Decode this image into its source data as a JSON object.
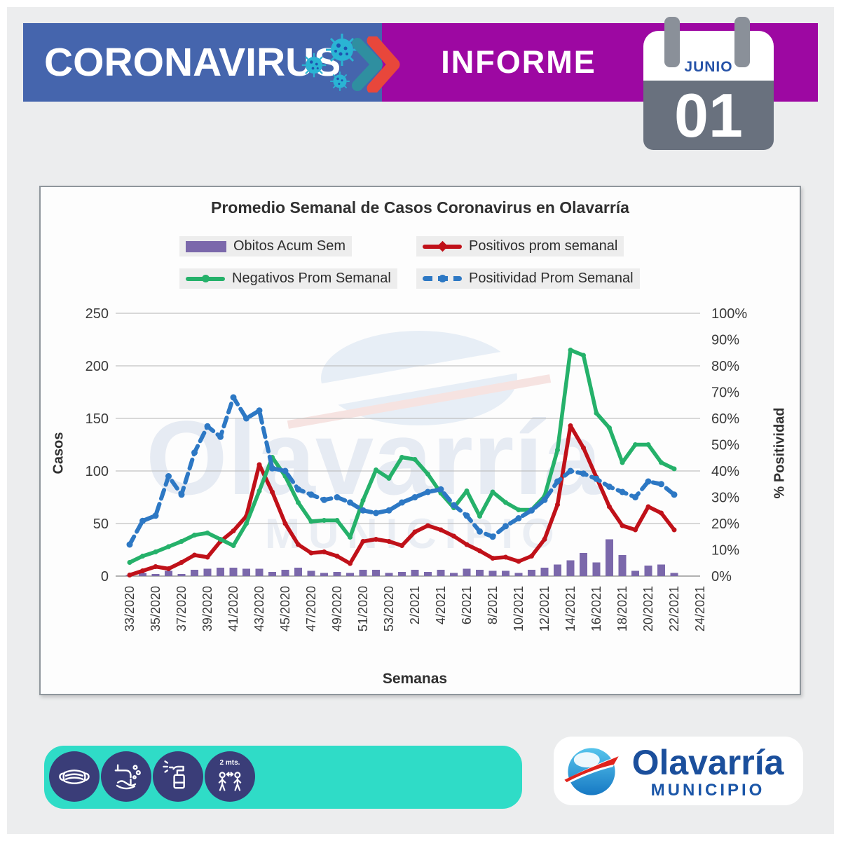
{
  "header": {
    "title": "CORONAVIRUS",
    "report_label": "INFORME",
    "calendar": {
      "month": "JUNIO",
      "day": "01"
    }
  },
  "chart_data": {
    "type": "mixed",
    "title": "Promedio Semanal de Casos Coronavirus en Olavarría",
    "xlabel": "Semanas",
    "ylabel_left": "Casos",
    "ylabel_right": "% Positividad",
    "ylim_left": [
      0,
      250
    ],
    "ylim_right_pct": [
      0,
      100
    ],
    "grid": true,
    "legend_position": "top",
    "n_weekly_points": 43,
    "x_tick_every_n_weeks": 2,
    "x_tick_labels": [
      "33/2020",
      "35/2020",
      "37/2020",
      "39/2020",
      "41/2020",
      "43/2020",
      "45/2020",
      "47/2020",
      "49/2020",
      "51/2020",
      "53/2020",
      "2/2021",
      "4/2021",
      "6/2021",
      "8/2021",
      "10/2021",
      "12/2021",
      "14/2021",
      "16/2021",
      "18/2021",
      "20/2021",
      "22/2021",
      "24/2021"
    ],
    "yticks_left": [
      0,
      50,
      100,
      150,
      200,
      250
    ],
    "yticks_right": [
      "0%",
      "10%",
      "20%",
      "30%",
      "40%",
      "50%",
      "60%",
      "70%",
      "80%",
      "90%",
      "100%"
    ],
    "series": [
      {
        "name": "Obitos Acum Sem",
        "type": "bar",
        "axis": "left",
        "color": "#7b68ab",
        "values": [
          1,
          3,
          2,
          5,
          2,
          6,
          7,
          8,
          8,
          7,
          7,
          4,
          6,
          8,
          5,
          3,
          4,
          3,
          6,
          6,
          3,
          4,
          6,
          4,
          6,
          3,
          7,
          6,
          5,
          5,
          3,
          6,
          8,
          11,
          15,
          22,
          13,
          35,
          20,
          5,
          10,
          11,
          3
        ]
      },
      {
        "name": "Positivos prom semanal",
        "type": "line",
        "axis": "left",
        "color": "#c01119",
        "values": [
          1,
          5,
          9,
          7,
          13,
          20,
          18,
          33,
          43,
          57,
          106,
          80,
          50,
          30,
          22,
          23,
          19,
          12,
          33,
          35,
          33,
          29,
          42,
          48,
          44,
          38,
          30,
          24,
          17,
          18,
          14,
          19,
          35,
          68,
          143,
          122,
          94,
          66,
          48,
          44,
          66,
          60,
          44
        ]
      },
      {
        "name": "Negativos Prom Semanal",
        "type": "line",
        "axis": "left",
        "color": "#25b16a",
        "values": [
          13,
          19,
          23,
          28,
          33,
          39,
          41,
          35,
          29,
          50,
          81,
          113,
          95,
          70,
          52,
          53,
          53,
          37,
          72,
          101,
          93,
          113,
          111,
          97,
          79,
          65,
          81,
          57,
          80,
          70,
          63,
          63,
          76,
          120,
          215,
          210,
          155,
          141,
          108,
          125,
          125,
          108,
          102
        ]
      },
      {
        "name": "Positividad Prom Semanal",
        "type": "line",
        "dashed": true,
        "axis": "right",
        "color": "#2d78c4",
        "values": [
          12,
          21,
          23,
          38,
          31,
          47,
          57,
          53,
          68,
          60,
          63,
          41,
          40,
          33,
          31,
          29,
          30,
          28,
          25,
          24,
          25,
          28,
          30,
          32,
          33,
          27,
          23,
          17,
          15,
          19,
          22,
          25,
          29,
          36,
          40,
          39,
          37,
          34,
          32,
          30,
          36,
          35,
          31
        ]
      }
    ],
    "watermark": {
      "line1": "Olavarría",
      "line2": "MUNICIPIO"
    }
  },
  "footer": {
    "distance_label": "2 mts.",
    "prevention_icons": [
      "face-mask",
      "hand-washing",
      "sanitizer-spray",
      "social-distance"
    ],
    "logo": {
      "name": "Olavarría",
      "subtitle": "MUNICIPIO"
    }
  },
  "colors": {
    "header_blue": "#4565ad",
    "header_purple": "#9d08a2",
    "calendar_gray": "#69717e",
    "teal_band": "#2fdcc7",
    "icon_circle_navy": "#3a3d78",
    "virus_teal": "#2ab4d4",
    "chevron_red": "#e8473b",
    "chevron_teal": "#2f8fa0",
    "logo_blue": "#1b4f9c",
    "logo_red": "#e0231c"
  }
}
